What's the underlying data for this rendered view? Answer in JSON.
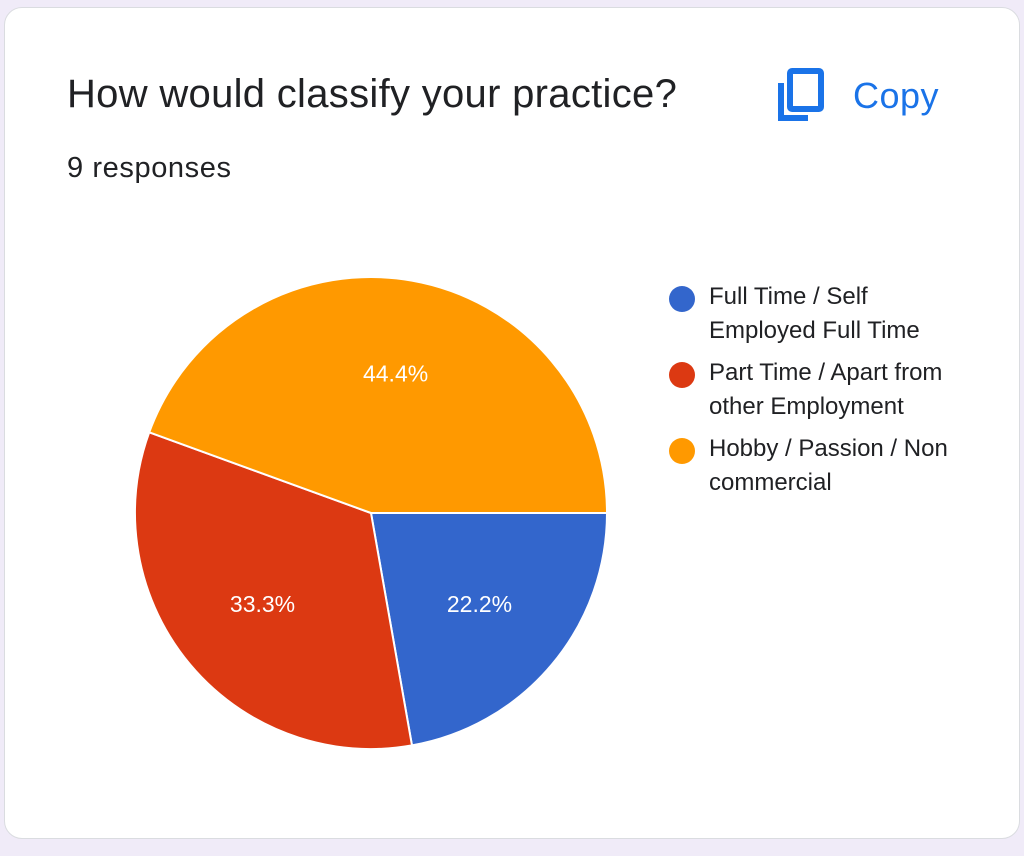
{
  "header": {
    "title": "How would classify your practice?",
    "responses": "9 responses",
    "copy_label": "Copy"
  },
  "colors": {
    "accent": "#1a73e8",
    "series": [
      "#3366cc",
      "#dc3912",
      "#ff9900"
    ]
  },
  "chart_data": {
    "type": "pie",
    "title": "How would classify your practice?",
    "legend_position": "right",
    "slices": [
      {
        "label": "Full Time / Self Employed Full Time",
        "value": 22.2,
        "display": "22.2%",
        "color": "#3366cc"
      },
      {
        "label": "Part Time / Apart from other Employment",
        "value": 33.3,
        "display": "33.3%",
        "color": "#dc3912"
      },
      {
        "label": "Hobby / Passion / Non commercial",
        "value": 44.4,
        "display": "44.4%",
        "color": "#ff9900"
      }
    ]
  }
}
